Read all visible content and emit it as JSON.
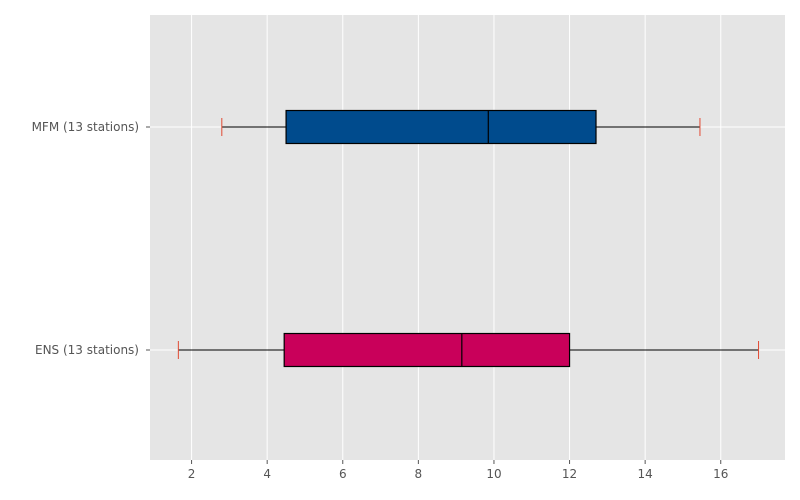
{
  "chart_data": {
    "type": "boxplot",
    "orientation": "horizontal",
    "title": "",
    "xlabel": "",
    "ylabel": "",
    "xlim": [
      0.9,
      17.7
    ],
    "xticks": [
      2,
      4,
      6,
      8,
      10,
      12,
      14,
      16
    ],
    "grid": true,
    "style": {
      "background": "#e5e5e5",
      "grid_color": "#ffffff",
      "whisker_color": "#000000",
      "cap_color": "#e24a33",
      "median_color": "#000000",
      "tick_text_color": "#555555"
    },
    "boxes": [
      {
        "label": "MFM (13 stations)",
        "min": 2.8,
        "q1": 4.5,
        "median": 9.85,
        "q3": 12.7,
        "max": 15.45,
        "color": "#004b8d"
      },
      {
        "label": "ENS (13 stations)",
        "min": 1.65,
        "q1": 4.45,
        "median": 9.15,
        "q3": 12.0,
        "max": 17.0,
        "color": "#c9005a"
      }
    ]
  }
}
